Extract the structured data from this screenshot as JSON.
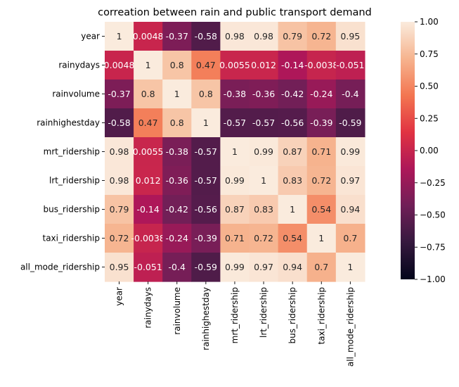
{
  "chart_data": {
    "type": "heatmap",
    "title": "correation between rain and public transport demand",
    "xlabel": "",
    "ylabel": "",
    "rows": [
      "year",
      "rainydays",
      "rainvolume",
      "rainhighestday",
      "mrt_ridership",
      "lrt_ridership",
      "bus_ridership",
      "taxi_ridership",
      "all_mode_ridership"
    ],
    "columns": [
      "year",
      "rainydays",
      "rainvolume",
      "rainhighestday",
      "mrt_ridership",
      "lrt_ridership",
      "bus_ridership",
      "taxi_ridership",
      "all_mode_ridership"
    ],
    "values": [
      [
        1,
        0.0048,
        -0.37,
        -0.58,
        0.98,
        0.98,
        0.79,
        0.72,
        0.95
      ],
      [
        0.0048,
        1,
        0.8,
        0.47,
        0.0055,
        0.012,
        -0.14,
        -0.0038,
        -0.051
      ],
      [
        -0.37,
        0.8,
        1,
        0.8,
        -0.38,
        -0.36,
        -0.42,
        -0.24,
        -0.4
      ],
      [
        -0.58,
        0.47,
        0.8,
        1,
        -0.57,
        -0.57,
        -0.56,
        -0.39,
        -0.59
      ],
      [
        0.98,
        0.0055,
        -0.38,
        -0.57,
        1,
        0.99,
        0.87,
        0.71,
        0.99
      ],
      [
        0.98,
        0.012,
        -0.36,
        -0.57,
        0.99,
        1,
        0.83,
        0.72,
        0.97
      ],
      [
        0.79,
        -0.14,
        -0.42,
        -0.56,
        0.87,
        0.83,
        1,
        0.54,
        0.94
      ],
      [
        0.72,
        -0.0038,
        -0.24,
        -0.39,
        0.71,
        0.72,
        0.54,
        1,
        0.7
      ],
      [
        0.95,
        -0.051,
        -0.4,
        -0.59,
        0.99,
        0.97,
        0.94,
        0.7,
        1
      ]
    ],
    "cell_labels": [
      [
        "1",
        "0.0048",
        "-0.37",
        "-0.58",
        "0.98",
        "0.98",
        "0.79",
        "0.72",
        "0.95"
      ],
      [
        "0.0048",
        "1",
        "0.8",
        "0.47",
        "0.0055",
        "0.012",
        "-0.14",
        "-0.0038",
        "-0.051"
      ],
      [
        "-0.37",
        "0.8",
        "1",
        "0.8",
        "-0.38",
        "-0.36",
        "-0.42",
        "-0.24",
        "-0.4"
      ],
      [
        "-0.58",
        "0.47",
        "0.8",
        "1",
        "-0.57",
        "-0.57",
        "-0.56",
        "-0.39",
        "-0.59"
      ],
      [
        "0.98",
        "0.0055",
        "-0.38",
        "-0.57",
        "1",
        "0.99",
        "0.87",
        "0.71",
        "0.99"
      ],
      [
        "0.98",
        "0.012",
        "-0.36",
        "-0.57",
        "0.99",
        "1",
        "0.83",
        "0.72",
        "0.97"
      ],
      [
        "0.79",
        "-0.14",
        "-0.42",
        "-0.56",
        "0.87",
        "0.83",
        "1",
        "0.54",
        "0.94"
      ],
      [
        "0.72",
        "-0.0038",
        "-0.24",
        "-0.39",
        "0.71",
        "0.72",
        "0.54",
        "1",
        "0.7"
      ],
      [
        "0.95",
        "-0.051",
        "-0.4",
        "-0.59",
        "0.99",
        "0.97",
        "0.94",
        "0.7",
        "1"
      ]
    ],
    "colormap": "rocket",
    "colormap_stops": [
      "#03051a",
      "#35193e",
      "#701f57",
      "#ad1759",
      "#e13342",
      "#f37651",
      "#f6b48f",
      "#faebdd"
    ],
    "vmin": -1,
    "vmax": 1,
    "colorbar_ticks": [
      1,
      0.75,
      0.5,
      0.25,
      0,
      -0.25,
      -0.5,
      -0.75,
      -1
    ],
    "colorbar_tick_labels": [
      "1.00",
      "0.75",
      "0.50",
      "0.25",
      "0.00",
      "−0.25",
      "−0.50",
      "−0.75",
      "−1.00"
    ],
    "annotation_text_colors": {
      "light": "#ffffff",
      "dark": "#262626"
    }
  }
}
